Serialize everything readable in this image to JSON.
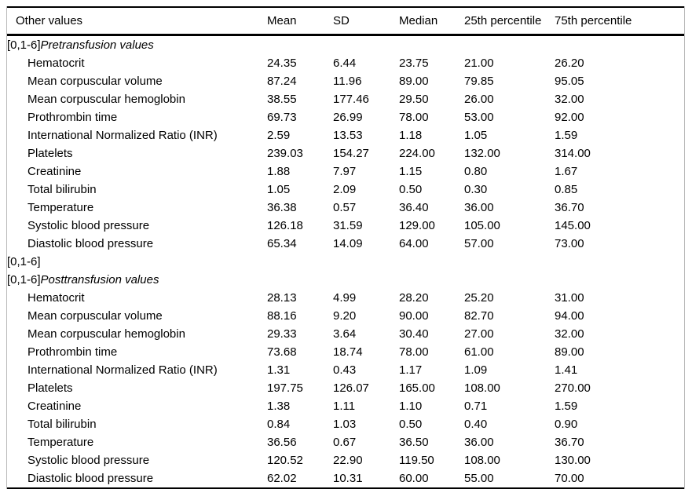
{
  "table": {
    "columns": [
      "Other values",
      "Mean",
      "SD",
      "Median",
      "25th percentile",
      "75th percentile"
    ],
    "sections": [
      {
        "prefix": "[0,1-6]",
        "title": "Pretransfusion values",
        "rows": [
          {
            "label": "Hematocrit",
            "values": [
              "24.35",
              "6.44",
              "23.75",
              "21.00",
              "26.20"
            ]
          },
          {
            "label": "Mean corpuscular volume",
            "values": [
              "87.24",
              "11.96",
              "89.00",
              "79.85",
              "95.05"
            ]
          },
          {
            "label": "Mean corpuscular hemoglobin",
            "values": [
              "38.55",
              "177.46",
              "29.50",
              "26.00",
              "32.00"
            ]
          },
          {
            "label": "Prothrombin time",
            "values": [
              "69.73",
              "26.99",
              "78.00",
              "53.00",
              "92.00"
            ]
          },
          {
            "label": "International Normalized Ratio (INR)",
            "values": [
              "2.59",
              "13.53",
              "1.18",
              "1.05",
              "1.59"
            ]
          },
          {
            "label": "Platelets",
            "values": [
              "239.03",
              "154.27",
              "224.00",
              "132.00",
              "314.00"
            ]
          },
          {
            "label": "Creatinine",
            "values": [
              "1.88",
              "7.97",
              "1.15",
              "0.80",
              "1.67"
            ]
          },
          {
            "label": "Total bilirubin",
            "values": [
              "1.05",
              "2.09",
              "0.50",
              "0.30",
              "0.85"
            ]
          },
          {
            "label": "Temperature",
            "values": [
              "36.38",
              "0.57",
              "36.40",
              "36.00",
              "36.70"
            ]
          },
          {
            "label": "Systolic blood pressure",
            "values": [
              "126.18",
              "31.59",
              "129.00",
              "105.00",
              "145.00"
            ]
          },
          {
            "label": "Diastolic blood pressure",
            "values": [
              "65.34",
              "14.09",
              "64.00",
              "57.00",
              "73.00"
            ]
          }
        ]
      },
      {
        "prefix": "[0,1-6]",
        "title": "",
        "rows": []
      },
      {
        "prefix": "[0,1-6]",
        "title": "Posttransfusion values",
        "rows": [
          {
            "label": "Hematocrit",
            "values": [
              "28.13",
              "4.99",
              "28.20",
              "25.20",
              "31.00"
            ]
          },
          {
            "label": "Mean corpuscular volume",
            "values": [
              "88.16",
              "9.20",
              "90.00",
              "82.70",
              "94.00"
            ]
          },
          {
            "label": "Mean corpuscular hemoglobin",
            "values": [
              "29.33",
              "3.64",
              "30.40",
              "27.00",
              "32.00"
            ]
          },
          {
            "label": "Prothrombin time",
            "values": [
              "73.68",
              "18.74",
              "78.00",
              "61.00",
              "89.00"
            ]
          },
          {
            "label": "International Normalized Ratio (INR)",
            "values": [
              "1.31",
              "0.43",
              "1.17",
              "1.09",
              "1.41"
            ]
          },
          {
            "label": "Platelets",
            "values": [
              "197.75",
              "126.07",
              "165.00",
              "108.00",
              "270.00"
            ]
          },
          {
            "label": "Creatinine",
            "values": [
              "1.38",
              "1.11",
              "1.10",
              "0.71",
              "1.59"
            ]
          },
          {
            "label": "Total bilirubin",
            "values": [
              "0.84",
              "1.03",
              "0.50",
              "0.40",
              "0.90"
            ]
          },
          {
            "label": "Temperature",
            "values": [
              "36.56",
              "0.67",
              "36.50",
              "36.00",
              "36.70"
            ]
          },
          {
            "label": "Systolic blood pressure",
            "values": [
              "120.52",
              "22.90",
              "119.50",
              "108.00",
              "130.00"
            ]
          },
          {
            "label": "Diastolic blood pressure",
            "values": [
              "62.02",
              "10.31",
              "60.00",
              "55.00",
              "70.00"
            ]
          }
        ]
      }
    ]
  }
}
